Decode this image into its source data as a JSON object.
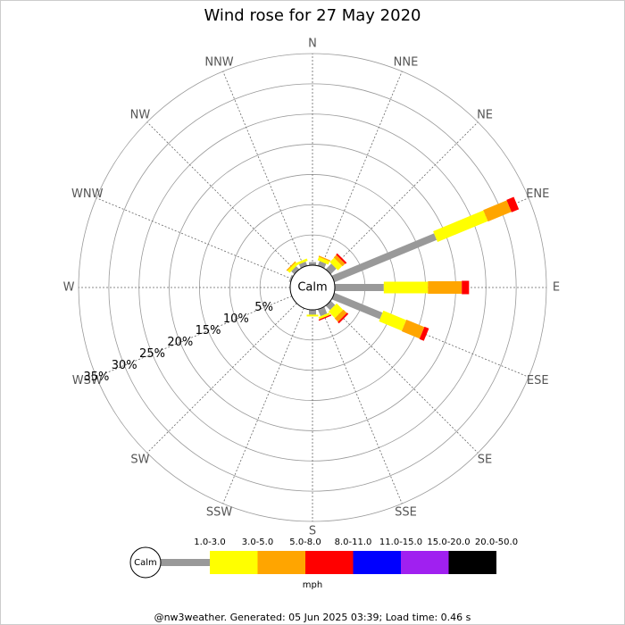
{
  "chart_data": {
    "type": "windrose",
    "title": "Wind rose for 27 May 2020",
    "directions": [
      "N",
      "NNE",
      "NE",
      "ENE",
      "E",
      "ESE",
      "SE",
      "SSE",
      "S",
      "SSW",
      "SW",
      "WSW",
      "W",
      "WNW",
      "NW",
      "NNW"
    ],
    "calm_label": "Calm",
    "rlim": [
      0,
      35
    ],
    "rticks": [
      {
        "value": 5,
        "label": "5%"
      },
      {
        "value": 10,
        "label": "10%"
      },
      {
        "value": 15,
        "label": "15%"
      },
      {
        "value": 20,
        "label": "20%"
      },
      {
        "value": 25,
        "label": "25%"
      },
      {
        "value": 30,
        "label": "30%"
      },
      {
        "value": 35,
        "label": "35%"
      }
    ],
    "grid": true,
    "units": "mph",
    "series": [
      {
        "name": "1.0-3.0",
        "color": "#999999",
        "values": [
          0.5,
          0.8,
          1.3,
          18.3,
          8.1,
          8.6,
          1.0,
          1.2,
          0.8,
          0,
          0,
          0,
          0,
          0.3,
          0.7,
          0.7
        ]
      },
      {
        "name": "3.0-5.0",
        "color": "#ffff00",
        "values": [
          0,
          0.6,
          1.0,
          9.0,
          7.3,
          4.1,
          1.5,
          0.4,
          0.3,
          0,
          0,
          0,
          0,
          0,
          0.5,
          0.4
        ]
      },
      {
        "name": "5.0-8.0",
        "color": "#ffa500",
        "values": [
          0,
          0.2,
          0.6,
          4.2,
          5.6,
          3.2,
          0.8,
          0,
          0,
          0,
          0,
          0,
          0,
          0,
          0.2,
          0
        ]
      },
      {
        "name": "8.0-11.0",
        "color": "#ff0000",
        "values": [
          0,
          0,
          0.3,
          1.3,
          1.2,
          0.8,
          0.3,
          0.2,
          0,
          0,
          0,
          0,
          0,
          0,
          0,
          0
        ]
      },
      {
        "name": "11.0-15.0",
        "color": "#0000ff",
        "values": [
          0,
          0,
          0,
          0,
          0,
          0,
          0,
          0,
          0,
          0,
          0,
          0,
          0,
          0,
          0,
          0
        ]
      },
      {
        "name": "15.0-20.0",
        "color": "#a020f0",
        "values": [
          0,
          0,
          0,
          0,
          0,
          0,
          0,
          0,
          0,
          0,
          0,
          0,
          0,
          0,
          0,
          0
        ]
      },
      {
        "name": "20.0-50.0",
        "color": "#000000",
        "values": [
          0,
          0,
          0,
          0,
          0,
          0,
          0,
          0,
          0,
          0,
          0,
          0,
          0,
          0,
          0,
          0
        ]
      }
    ]
  },
  "footer": "@nw3weather. Generated: 05 Jun 2025 03:39; Load time: 0.46 s"
}
